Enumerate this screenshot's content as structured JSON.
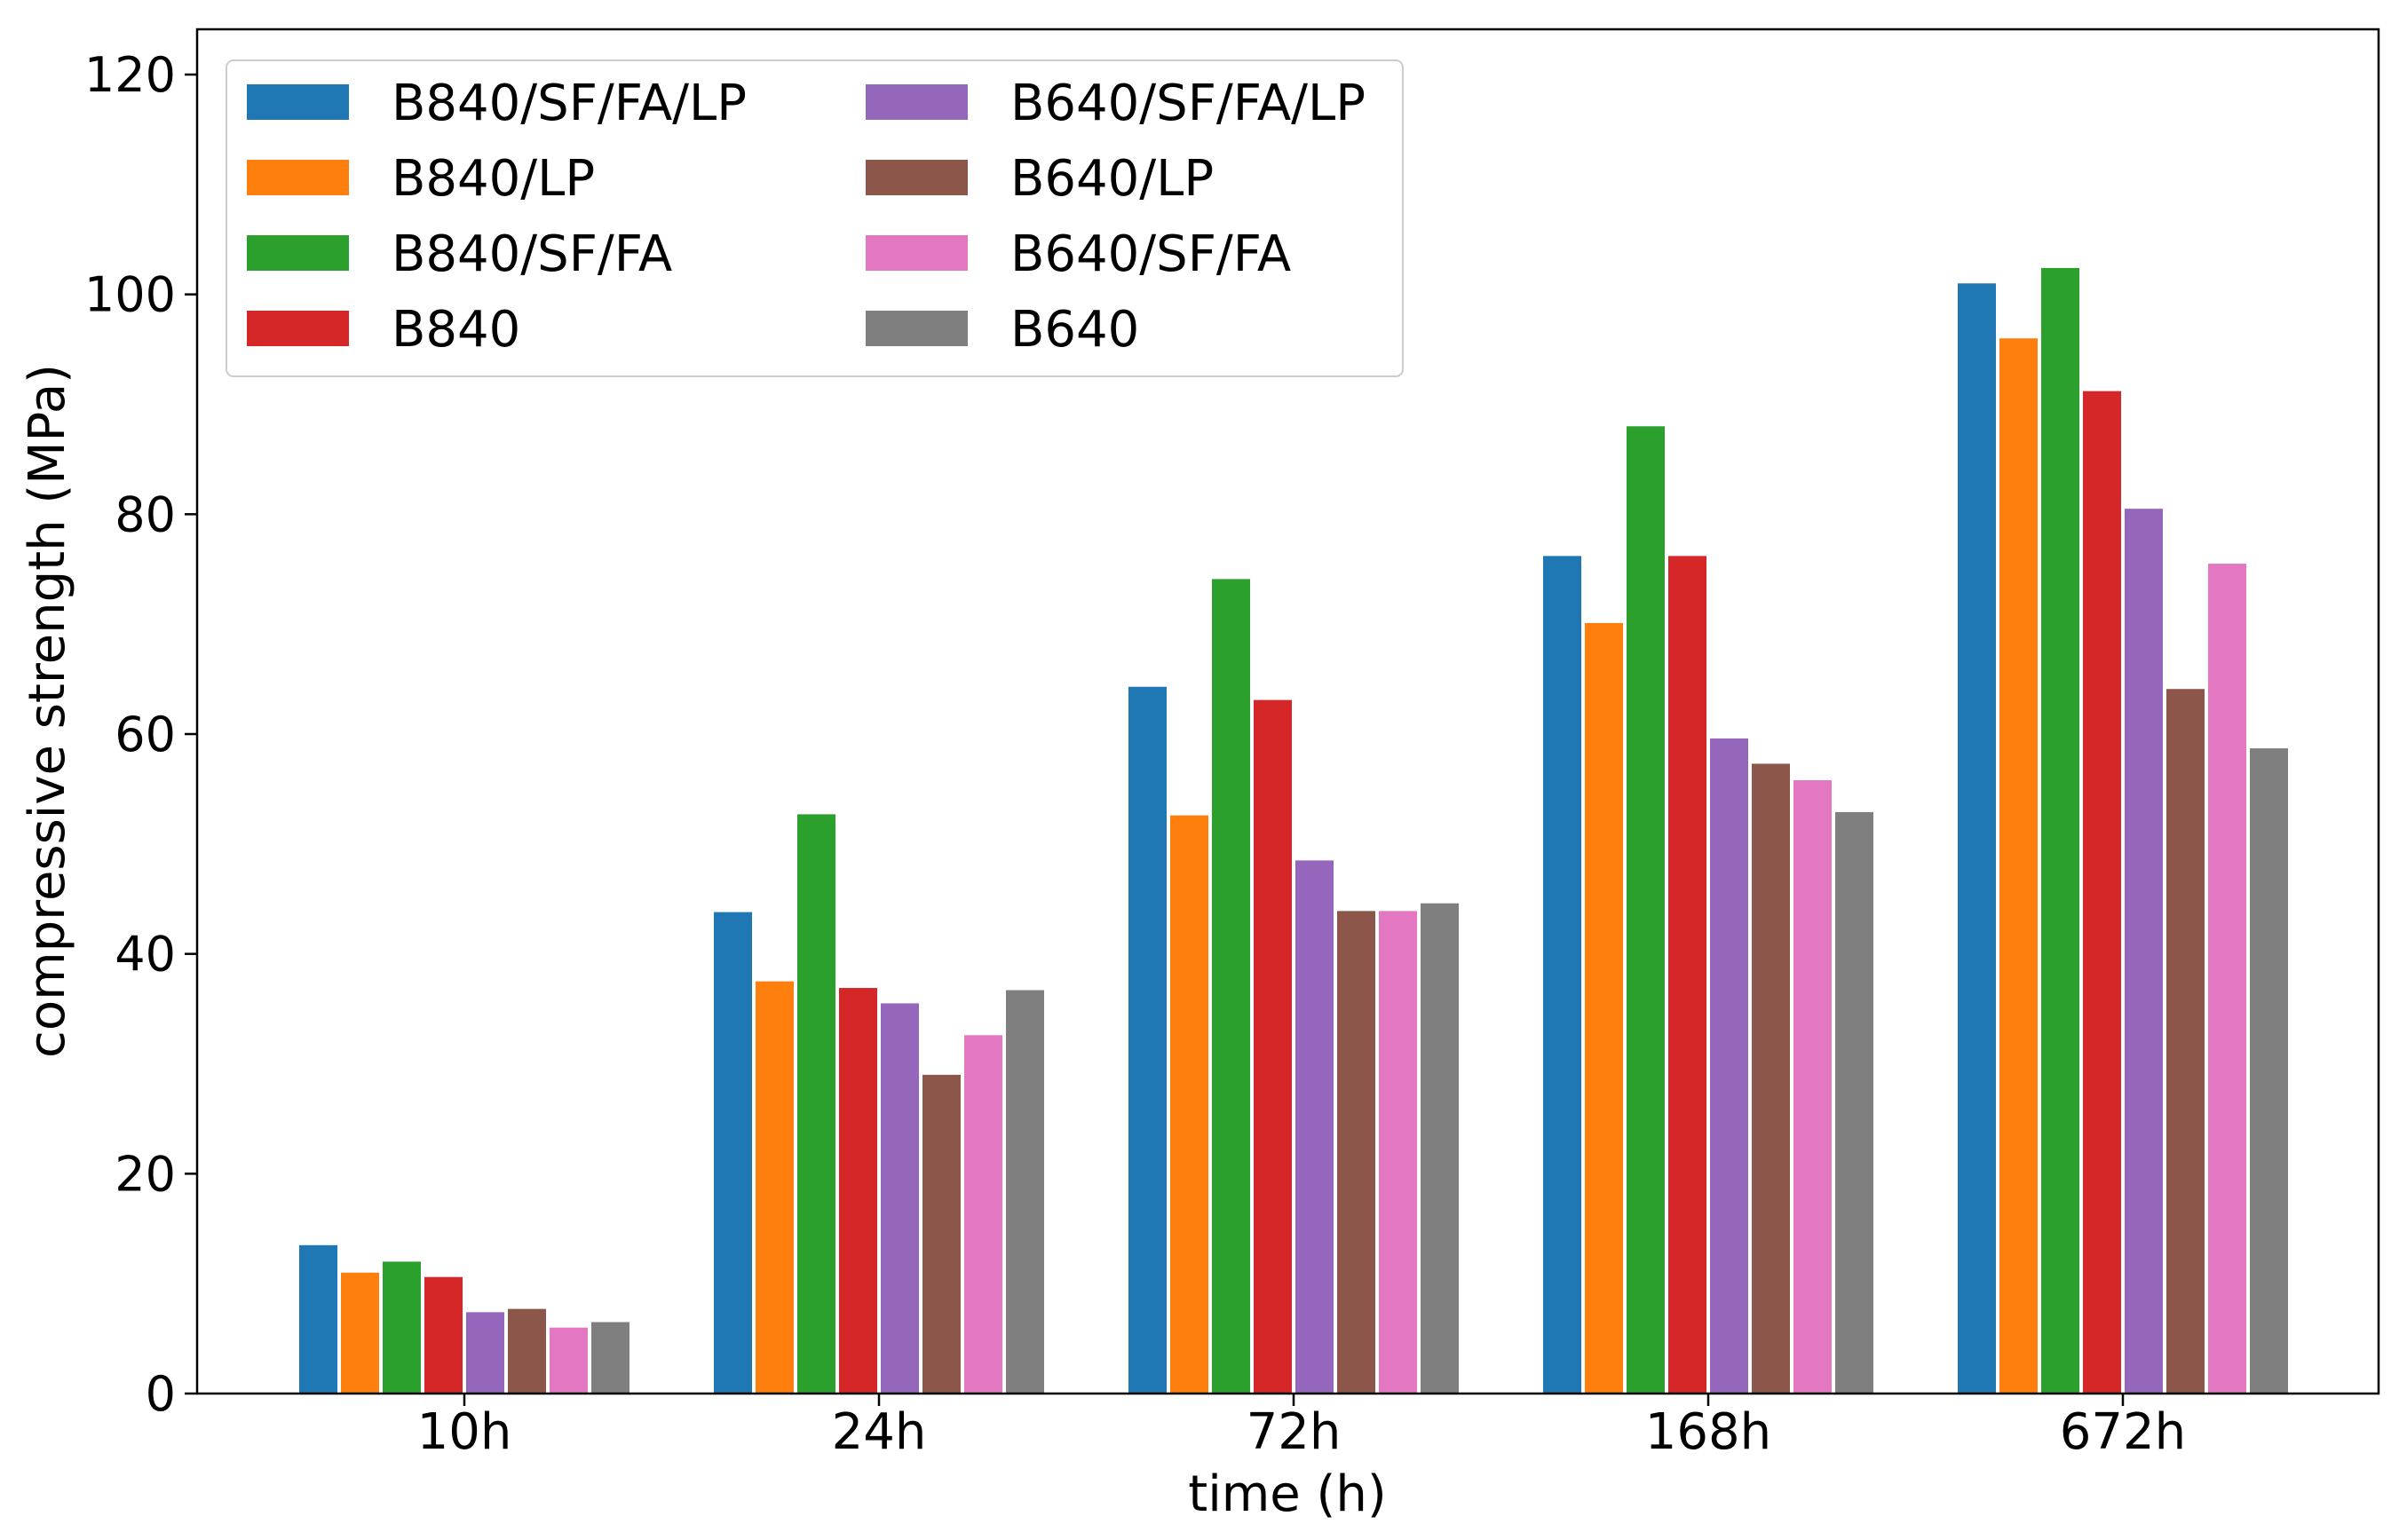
{
  "chart_data": {
    "type": "bar",
    "title": "",
    "xlabel": "time (h)",
    "ylabel": "compressive strength (MPa)",
    "ylim": [
      0,
      120
    ],
    "yticks": [
      0,
      20,
      40,
      60,
      80,
      100,
      120
    ],
    "grid": false,
    "legend_position": "top-left",
    "legend_columns": 2,
    "categories": [
      "10h",
      "24h",
      "72h",
      "168h",
      "672h"
    ],
    "series": [
      {
        "name": "B840/SF/FA/LP",
        "color": "#1f77b4",
        "values": [
          13.5,
          43.8,
          64.3,
          76.2,
          101.0
        ]
      },
      {
        "name": "B840/LP",
        "color": "#ff7f0e",
        "values": [
          11.0,
          37.5,
          52.6,
          70.1,
          96.0
        ]
      },
      {
        "name": "B840/SF/FA",
        "color": "#2ca02c",
        "values": [
          12.0,
          52.7,
          74.1,
          88.0,
          102.4
        ]
      },
      {
        "name": "B840",
        "color": "#d62728",
        "values": [
          10.6,
          36.9,
          63.1,
          76.2,
          91.2
        ]
      },
      {
        "name": "B640/SF/FA/LP",
        "color": "#9467bd",
        "values": [
          7.4,
          35.5,
          48.5,
          59.6,
          80.5
        ]
      },
      {
        "name": "B640/LP",
        "color": "#8c564b",
        "values": [
          7.7,
          29.0,
          43.9,
          57.3,
          64.1
        ]
      },
      {
        "name": "B640/SF/FA",
        "color": "#e377c2",
        "values": [
          6.0,
          32.6,
          43.9,
          55.8,
          75.5
        ]
      },
      {
        "name": "B640",
        "color": "#7f7f7f",
        "values": [
          6.5,
          36.7,
          44.6,
          52.9,
          58.7
        ]
      }
    ]
  }
}
